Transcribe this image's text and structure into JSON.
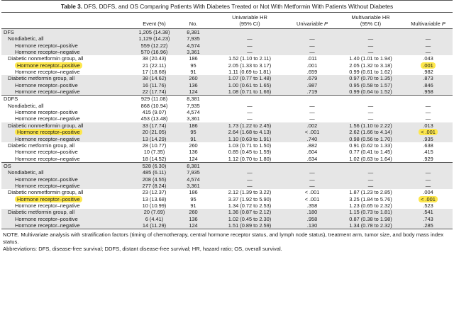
{
  "title": {
    "prefix": "Table 3.",
    "text": " DFS, DDFS, and OS Comparing Patients With Diabetes Treated or Not With Metformin With Patients Without Diabetes"
  },
  "headers": {
    "event": "Event (%)",
    "no": "No.",
    "uni_hr": "Univariable HR",
    "uni_ci": "(95% CI)",
    "uni_p": "Univariable",
    "multi_hr": "Multivariable HR",
    "multi_ci": "(95% CI)",
    "multi_p": "Multivariable",
    "p_symbol": "P"
  },
  "sections": [
    {
      "rows": [
        {
          "label": "DFS",
          "level": 0,
          "event": "1,205 (14.38)",
          "no": "8,381",
          "uhr": "",
          "up": "",
          "mhr": "",
          "mp": "",
          "shade": true
        },
        {
          "label": "Nondiabetic, all",
          "level": 1,
          "event": "1,129 (14.23)",
          "no": "7,935",
          "uhr": "—",
          "up": "—",
          "mhr": "—",
          "mp": "—",
          "shade": true
        },
        {
          "label": "Hormone receptor–positive",
          "level": 2,
          "event": "559 (12.22)",
          "no": "4,574",
          "uhr": "—",
          "up": "—",
          "mhr": "—",
          "mp": "—",
          "shade": true
        },
        {
          "label": "Hormone receptor–negative",
          "level": 2,
          "event": "570 (16.96)",
          "no": "3,361",
          "uhr": "—",
          "up": "—",
          "mhr": "—",
          "mp": "—",
          "shade": true
        },
        {
          "label": "Diabetic nonmetformin group, all",
          "level": 1,
          "event": "38 (20.43)",
          "no": "186",
          "uhr": "1.52 (1.10 to 2.11)",
          "up": ".011",
          "mhr": "1.40 (1.01 to 1.94)",
          "mp": ".043",
          "shade": false
        },
        {
          "label": "Hormone receptor–positive",
          "level": 2,
          "event": "21 (22.11)",
          "no": "95",
          "uhr": "2.05 (1.33 to 3.17)",
          "up": ".001",
          "mhr": "2.05 (1.32 to 3.18)",
          "mp": ".001",
          "shade": false,
          "hl_label": true,
          "hl_mp": true
        },
        {
          "label": "Hormone receptor–negative",
          "level": 2,
          "event": "17 (18.68)",
          "no": "91",
          "uhr": "1.11 (0.69 to 1.81)",
          "up": ".659",
          "mhr": "0.99 (0.61 to 1.62)",
          "mp": ".982",
          "shade": false
        },
        {
          "label": "Diabetic metformin group, all",
          "level": 1,
          "event": "38 (14.62)",
          "no": "260",
          "uhr": "1.07 (0.77 to 1.48)",
          "up": ".679",
          "mhr": "0.97 (0.70 to 1.35)",
          "mp": ".873",
          "shade": true
        },
        {
          "label": "Hormone receptor–positive",
          "level": 2,
          "event": "16 (11.76)",
          "no": "136",
          "uhr": "1.00 (0.61 to 1.65)",
          "up": ".987",
          "mhr": "0.95 (0.58 to 1.57)",
          "mp": ".846",
          "shade": true
        },
        {
          "label": "Hormone receptor–negative",
          "level": 2,
          "event": "22 (17.74)",
          "no": "124",
          "uhr": "1.08 (0.71 to 1.66)",
          "up": ".719",
          "mhr": "0.99 (0.64 to 1.52)",
          "mp": ".958",
          "shade": true
        }
      ]
    },
    {
      "rows": [
        {
          "label": "DDFS",
          "level": 0,
          "event": "929 (11.08)",
          "no": "8,381",
          "uhr": "",
          "up": "",
          "mhr": "",
          "mp": "",
          "shade": false
        },
        {
          "label": "Nondiabetic, all",
          "level": 1,
          "event": "868 (10.94)",
          "no": "7,935",
          "uhr": "—",
          "up": "—",
          "mhr": "—",
          "mp": "—",
          "shade": false
        },
        {
          "label": "Hormone receptor–positive",
          "level": 2,
          "event": "415 (9.07)",
          "no": "4,574",
          "uhr": "—",
          "up": "—",
          "mhr": "—",
          "mp": "—",
          "shade": false
        },
        {
          "label": "Hormone receptor–negative",
          "level": 2,
          "event": "453 (13.48)",
          "no": "3,361",
          "uhr": "—",
          "up": "—",
          "mhr": "—",
          "mp": "—",
          "shade": false
        },
        {
          "label": "Diabetic nonmetformin group, all",
          "level": 1,
          "event": "33 (17.74)",
          "no": "186",
          "uhr": "1.73 (1.22 to 2.45)",
          "up": ".002",
          "mhr": "1.56 (1.10 to 2.22)",
          "mp": ".013",
          "shade": true
        },
        {
          "label": "Hormone receptor–positive",
          "level": 2,
          "event": "20 (21.05)",
          "no": "95",
          "uhr": "2.64 (1.68 to 4.13)",
          "up": "< .001",
          "mhr": "2.62 (1.66 to 4.14)",
          "mp": "< .001",
          "shade": true,
          "hl_label": true,
          "hl_mp": true
        },
        {
          "label": "Hormone receptor–negative",
          "level": 2,
          "event": "13 (14.29)",
          "no": "91",
          "uhr": "1.10 (0.63 to 1.91)",
          "up": ".740",
          "mhr": "0.98 (0.56 to 1.70)",
          "mp": ".935",
          "shade": true
        },
        {
          "label": "Diabetic metformin group, all",
          "level": 1,
          "event": "28 (10.77)",
          "no": "260",
          "uhr": "1.03 (0.71 to 1.50)",
          "up": ".882",
          "mhr": "0.91 (0.62 to 1.33)",
          "mp": ".638",
          "shade": false
        },
        {
          "label": "Hormone receptor–positive",
          "level": 2,
          "event": "10 (7.35)",
          "no": "136",
          "uhr": "0.85 (0.45 to 1.59)",
          "up": ".604",
          "mhr": "0.77 (0.41 to 1.45)",
          "mp": ".415",
          "shade": false
        },
        {
          "label": "Hormone receptor–negative",
          "level": 2,
          "event": "18 (14.52)",
          "no": "124",
          "uhr": "1.12 (0.70 to 1.80)",
          "up": ".634",
          "mhr": "1.02 (0.63 to 1.64)",
          "mp": ".929",
          "shade": false
        }
      ]
    },
    {
      "rows": [
        {
          "label": "OS",
          "level": 0,
          "event": "528 (6.30)",
          "no": "8,381",
          "uhr": "",
          "up": "",
          "mhr": "",
          "mp": "",
          "shade": true
        },
        {
          "label": "Nondiabetic, all",
          "level": 1,
          "event": "485 (6.11)",
          "no": "7,935",
          "uhr": "—",
          "up": "—",
          "mhr": "—",
          "mp": "—",
          "shade": true
        },
        {
          "label": "Hormone receptor–positive",
          "level": 2,
          "event": "208 (4.55)",
          "no": "4,574",
          "uhr": "—",
          "up": "—",
          "mhr": "—",
          "mp": "—",
          "shade": true
        },
        {
          "label": "Hormone receptor–negative",
          "level": 2,
          "event": "277 (8.24)",
          "no": "3,361",
          "uhr": "—",
          "up": "—",
          "mhr": "—",
          "mp": "—",
          "shade": true
        },
        {
          "label": "Diabetic nonmetformin group, all",
          "level": 1,
          "event": "23 (12.37)",
          "no": "186",
          "uhr": "2.12 (1.39 to 3.22)",
          "up": "< .001",
          "mhr": "1.87 (1.23 to 2.85)",
          "mp": ".004",
          "shade": false
        },
        {
          "label": "Hormone receptor–positive",
          "level": 2,
          "event": "13 (13.68)",
          "no": "95",
          "uhr": "3.37 (1.92 to 5.90)",
          "up": "< .001",
          "mhr": "3.25 (1.84 to 5.76)",
          "mp": "< .001",
          "shade": false,
          "hl_label": true,
          "hl_mp": true
        },
        {
          "label": "Hormone receptor–negative",
          "level": 2,
          "event": "10 (10.99)",
          "no": "91",
          "uhr": "1.34 (0.72 to 2.53)",
          "up": ".358",
          "mhr": "1.23 (0.65 to 2.32)",
          "mp": ".523",
          "shade": false
        },
        {
          "label": "Diabetic metformin group, all",
          "level": 1,
          "event": "20 (7.69)",
          "no": "260",
          "uhr": "1.36 (0.87 to 2.12)",
          "up": ".180",
          "mhr": "1.15 (0.73 to 1.81)",
          "mp": ".541",
          "shade": true
        },
        {
          "label": "Hormone receptor–positive",
          "level": 2,
          "event": "6 (4.41)",
          "no": "136",
          "uhr": "1.02 (0.45 to 2.30)",
          "up": ".958",
          "mhr": "0.87 (0.38 to 1.98)",
          "mp": ".743",
          "shade": true
        },
        {
          "label": "Hormone receptor–negative",
          "level": 2,
          "event": "14 (11.29)",
          "no": "124",
          "uhr": "1.51 (0.89 to 2.59)",
          "up": ".130",
          "mhr": "1.34 (0.78 to 2.32)",
          "mp": ".285",
          "shade": true
        }
      ]
    }
  ],
  "notes": {
    "note": "NOTE. Multivariate analysis with stratification factors (timing of chemotherapy, central hormone receptor status, and lymph node status), treatment arm, tumor size, and body mass index status.",
    "abbrev": "Abbreviations: DFS, disease-free survival; DDFS, distant disease-free survival; HR, hazard ratio; OS, overall survival."
  },
  "colors": {
    "highlight": "#fde74c",
    "shade": "#e6e6e6"
  }
}
